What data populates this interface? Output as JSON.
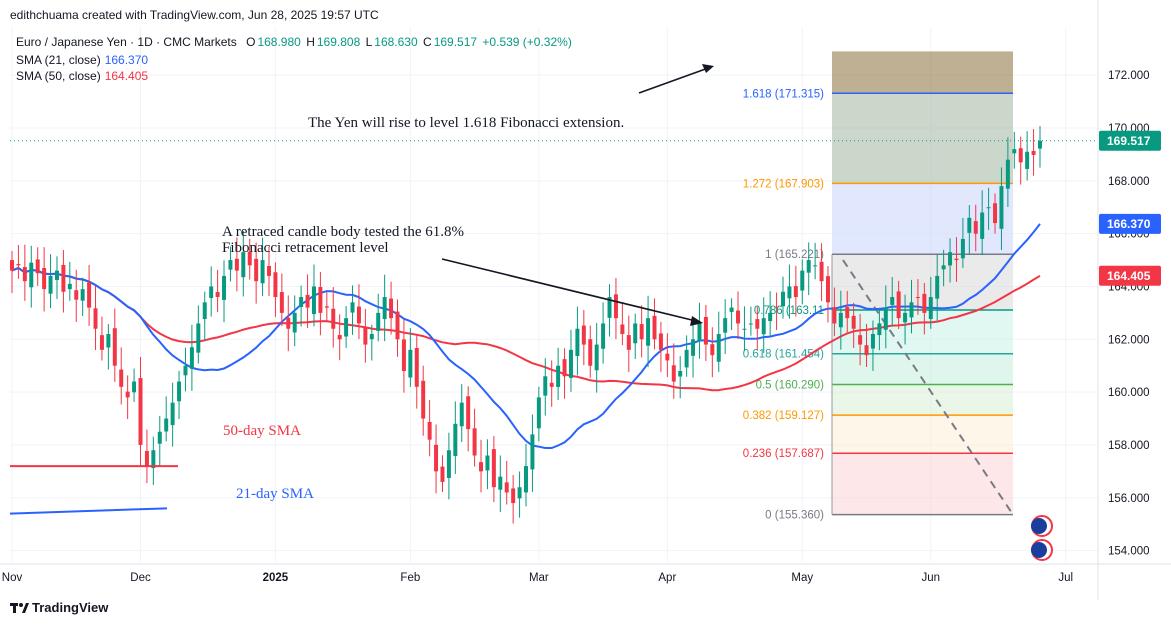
{
  "header": {
    "credit": "edithchuama created with TradingView.com, Jun 28, 2025 19:57 UTC"
  },
  "legend": {
    "symbol": "Euro / Japanese Yen · 1D · CMC Markets",
    "open_label": "O",
    "open": "168.980",
    "high_label": "H",
    "high": "169.808",
    "low_label": "L",
    "low": "168.630",
    "close_label": "C",
    "close": "169.517",
    "change": "+0.539 (+0.32%)",
    "sma21_label": "SMA (21, close)",
    "sma21_value": "166.370",
    "sma50_label": "SMA (50, close)",
    "sma50_value": "164.405"
  },
  "footer": {
    "brand": "TradingView"
  },
  "colors": {
    "up": "#089981",
    "down": "#f23645",
    "sma21": "#2962ff",
    "sma50": "#f23645",
    "text": "#131722",
    "axis": "#787b86"
  },
  "chart_data": {
    "type": "candlestick",
    "title": "Euro / Japanese Yen · 1D · CMC Markets",
    "xlabel": "",
    "ylabel": "",
    "ylim": [
      153.0,
      173.0
    ],
    "grid": true,
    "y_ticks": [
      "172.000",
      "170.000",
      "168.000",
      "166.000",
      "164.000",
      "162.000",
      "160.000",
      "158.000",
      "156.000",
      "154.000"
    ],
    "x_ticks": [
      {
        "label": "Nov",
        "i": 0
      },
      {
        "label": "Dec",
        "i": 20
      },
      {
        "label": "2025",
        "i": 41
      },
      {
        "label": "Feb",
        "i": 62
      },
      {
        "label": "Mar",
        "i": 82
      },
      {
        "label": "Apr",
        "i": 102
      },
      {
        "label": "May",
        "i": 123
      },
      {
        "label": "Jun",
        "i": 143
      },
      {
        "label": "Jul",
        "i": 164
      }
    ],
    "close_series": [
      164.6,
      164.8,
      164.2,
      164.9,
      164.5,
      163.9,
      164.4,
      164.6,
      163.8,
      164.1,
      163.5,
      163.9,
      163.2,
      162.4,
      161.6,
      162.2,
      161.0,
      160.2,
      159.8,
      160.4,
      158.0,
      157.2,
      157.8,
      158.5,
      159.0,
      159.6,
      160.4,
      161.0,
      161.7,
      162.6,
      163.4,
      164.0,
      163.6,
      164.4,
      165.0,
      164.6,
      165.3,
      164.8,
      164.2,
      165.0,
      164.4,
      163.6,
      163.0,
      162.4,
      163.0,
      163.6,
      163.2,
      164.0,
      163.0,
      163.2,
      162.4,
      162.0,
      162.8,
      163.4,
      162.6,
      161.8,
      162.2,
      163.0,
      163.6,
      162.8,
      162.0,
      160.8,
      161.6,
      160.2,
      159.0,
      158.2,
      157.0,
      156.6,
      157.8,
      158.8,
      159.6,
      158.6,
      157.6,
      157.0,
      157.6,
      156.4,
      156.8,
      156.2,
      155.8,
      156.4,
      157.2,
      158.4,
      159.8,
      160.6,
      160.2,
      161.0,
      160.6,
      161.6,
      162.4,
      161.8,
      161.0,
      161.8,
      162.6,
      163.6,
      162.8,
      162.2,
      161.6,
      162.6,
      162.0,
      162.8,
      162.0,
      161.6,
      161.2,
      160.4,
      160.8,
      161.6,
      162.0,
      162.6,
      161.8,
      161.4,
      162.2,
      162.8,
      163.2,
      162.6,
      162.4,
      162.6,
      162.4,
      162.8,
      163.0,
      163.2,
      163.8,
      164.0,
      163.6,
      164.6,
      165.0,
      164.8,
      164.2,
      163.4,
      162.6,
      163.0,
      162.8,
      162.4,
      161.8,
      161.4,
      162.2,
      162.6,
      163.2,
      163.6,
      162.8,
      163.0,
      163.4,
      163.6,
      163.0,
      163.6,
      164.4,
      164.8,
      165.3,
      165.0,
      165.8,
      166.6,
      166.0,
      166.8,
      167.0,
      166.4,
      167.8,
      168.8,
      169.2,
      168.7,
      169.1,
      168.98,
      169.517
    ],
    "sma21": {
      "name": "SMA (21, close)",
      "value": 166.37
    },
    "sma50": {
      "name": "SMA (50, close)",
      "value": 164.405
    },
    "current_price": 169.517,
    "fibonacci": [
      {
        "label": "1.618 (171.315)",
        "value": 171.315,
        "color": "#2962ff"
      },
      {
        "label": "1.272 (167.903)",
        "value": 167.903,
        "color": "#ff9800"
      },
      {
        "label": "1 (165.221)",
        "value": 165.221,
        "color": "#787b86"
      },
      {
        "label": "0.786 (163.11",
        "value": 163.11,
        "color": "#089981"
      },
      {
        "label": "0.618 (161.454)",
        "value": 161.454,
        "color": "#26a69a"
      },
      {
        "label": "0.5 (160.290)",
        "value": 160.29,
        "color": "#4caf50"
      },
      {
        "label": "0.382 (159.127)",
        "value": 159.127,
        "color": "#ff9800"
      },
      {
        "label": "0.236 (157.687)",
        "value": 157.687,
        "color": "#f23645"
      },
      {
        "label": "0 (155.360)",
        "value": 155.36,
        "color": "#787b86"
      }
    ],
    "annotations": [
      {
        "text": "The Yen  will rise to level 1.618 Fibonacci extension.",
        "key": "a1"
      },
      {
        "text": "A retraced candle body tested the 61.8%",
        "key": "a2"
      },
      {
        "text": "Fibonacci retracement level",
        "key": "a3"
      },
      {
        "text": "50-day SMA",
        "key": "a4"
      },
      {
        "text": "21-day SMA",
        "key": "a5"
      }
    ]
  }
}
